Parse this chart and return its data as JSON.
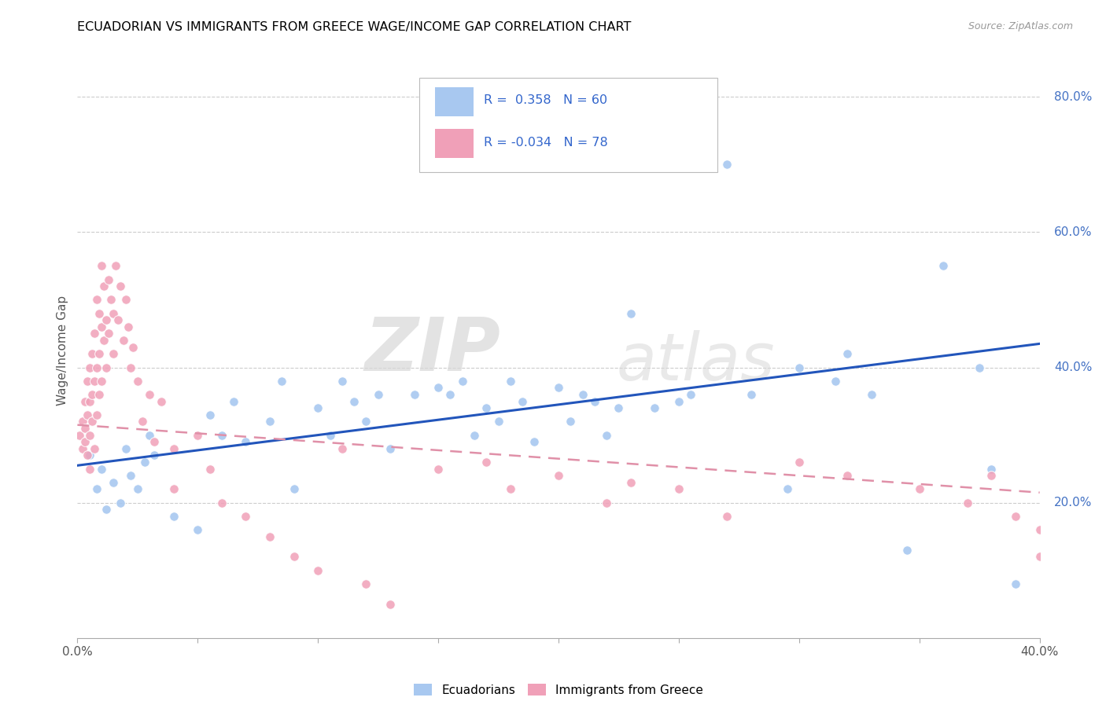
{
  "title": "ECUADORIAN VS IMMIGRANTS FROM GREECE WAGE/INCOME GAP CORRELATION CHART",
  "source": "Source: ZipAtlas.com",
  "ylabel": "Wage/Income Gap",
  "xlim": [
    0.0,
    0.4
  ],
  "ylim": [
    0.0,
    0.85
  ],
  "color_blue": "#a8c8f0",
  "color_pink": "#f0a0b8",
  "line_blue": "#2255bb",
  "line_pink": "#e090a8",
  "watermark_zip": "ZIP",
  "watermark_atlas": "atlas",
  "blue_line_x0": 0.0,
  "blue_line_y0": 0.255,
  "blue_line_x1": 0.4,
  "blue_line_y1": 0.435,
  "pink_line_x0": 0.0,
  "pink_line_y0": 0.315,
  "pink_line_x1": 0.4,
  "pink_line_y1": 0.215,
  "blue_x": [
    0.005,
    0.008,
    0.01,
    0.012,
    0.015,
    0.018,
    0.02,
    0.022,
    0.025,
    0.028,
    0.03,
    0.032,
    0.04,
    0.05,
    0.055,
    0.06,
    0.065,
    0.07,
    0.08,
    0.085,
    0.09,
    0.1,
    0.105,
    0.11,
    0.115,
    0.12,
    0.125,
    0.13,
    0.14,
    0.15,
    0.155,
    0.16,
    0.165,
    0.17,
    0.175,
    0.18,
    0.185,
    0.19,
    0.2,
    0.205,
    0.21,
    0.215,
    0.22,
    0.225,
    0.23,
    0.24,
    0.25,
    0.255,
    0.27,
    0.28,
    0.295,
    0.3,
    0.315,
    0.32,
    0.33,
    0.345,
    0.36,
    0.375,
    0.38,
    0.39
  ],
  "blue_y": [
    0.27,
    0.22,
    0.25,
    0.19,
    0.23,
    0.2,
    0.28,
    0.24,
    0.22,
    0.26,
    0.3,
    0.27,
    0.18,
    0.16,
    0.33,
    0.3,
    0.35,
    0.29,
    0.32,
    0.38,
    0.22,
    0.34,
    0.3,
    0.38,
    0.35,
    0.32,
    0.36,
    0.28,
    0.36,
    0.37,
    0.36,
    0.38,
    0.3,
    0.34,
    0.32,
    0.38,
    0.35,
    0.29,
    0.37,
    0.32,
    0.36,
    0.35,
    0.3,
    0.34,
    0.48,
    0.34,
    0.35,
    0.36,
    0.7,
    0.36,
    0.22,
    0.4,
    0.38,
    0.42,
    0.36,
    0.13,
    0.55,
    0.4,
    0.25,
    0.08
  ],
  "pink_x": [
    0.001,
    0.002,
    0.002,
    0.003,
    0.003,
    0.003,
    0.004,
    0.004,
    0.004,
    0.005,
    0.005,
    0.005,
    0.005,
    0.006,
    0.006,
    0.006,
    0.007,
    0.007,
    0.007,
    0.008,
    0.008,
    0.008,
    0.009,
    0.009,
    0.009,
    0.01,
    0.01,
    0.01,
    0.011,
    0.011,
    0.012,
    0.012,
    0.013,
    0.013,
    0.014,
    0.015,
    0.015,
    0.016,
    0.017,
    0.018,
    0.019,
    0.02,
    0.021,
    0.022,
    0.023,
    0.025,
    0.027,
    0.03,
    0.032,
    0.035,
    0.04,
    0.04,
    0.05,
    0.055,
    0.06,
    0.07,
    0.08,
    0.09,
    0.1,
    0.11,
    0.12,
    0.13,
    0.15,
    0.17,
    0.18,
    0.2,
    0.22,
    0.23,
    0.25,
    0.27,
    0.3,
    0.32,
    0.35,
    0.37,
    0.38,
    0.39,
    0.4,
    0.4
  ],
  "pink_y": [
    0.3,
    0.32,
    0.28,
    0.35,
    0.29,
    0.31,
    0.38,
    0.33,
    0.27,
    0.4,
    0.35,
    0.3,
    0.25,
    0.42,
    0.36,
    0.32,
    0.45,
    0.38,
    0.28,
    0.5,
    0.4,
    0.33,
    0.48,
    0.42,
    0.36,
    0.55,
    0.46,
    0.38,
    0.52,
    0.44,
    0.47,
    0.4,
    0.53,
    0.45,
    0.5,
    0.48,
    0.42,
    0.55,
    0.47,
    0.52,
    0.44,
    0.5,
    0.46,
    0.4,
    0.43,
    0.38,
    0.32,
    0.36,
    0.29,
    0.35,
    0.28,
    0.22,
    0.3,
    0.25,
    0.2,
    0.18,
    0.15,
    0.12,
    0.1,
    0.28,
    0.08,
    0.05,
    0.25,
    0.26,
    0.22,
    0.24,
    0.2,
    0.23,
    0.22,
    0.18,
    0.26,
    0.24,
    0.22,
    0.2,
    0.24,
    0.18,
    0.16,
    0.12
  ]
}
